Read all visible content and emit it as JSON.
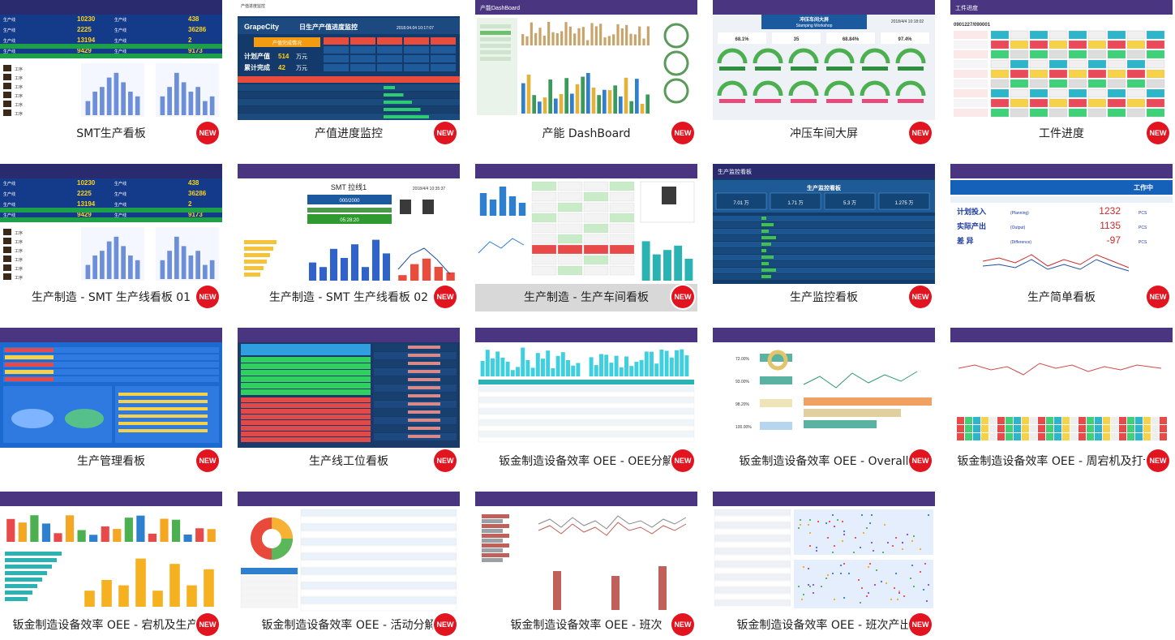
{
  "badge_label": "NEW",
  "cards": [
    {
      "caption": "SMT生产看板",
      "theme": "blue-bars",
      "thumb": {
        "nums": [
          "10230",
          "438",
          "2225",
          "36286",
          "13194",
          "2",
          "9429",
          "9173"
        ]
      }
    },
    {
      "caption": "产值进度监控",
      "theme": "navy-table",
      "thumb": {
        "logo": "GrapeCity",
        "title": "日生产产值进度监控",
        "date": "2018.04.04 10:17:07",
        "plan_label": "计划产值",
        "plan_value": "514",
        "done_label": "累计完成",
        "done_value": "42",
        "unit": "万元",
        "panel_title": "产值完成情况"
      }
    },
    {
      "caption": "产能 DashBoard",
      "theme": "light-bars",
      "thumb": {}
    },
    {
      "caption": "冲压车间大屏",
      "theme": "gauges",
      "thumb": {
        "title": "冲压车间大屏",
        "subtitle": "Stamping Workshop",
        "date": "2018/4/4 10:18:02",
        "vals": [
          "68.1%",
          "35",
          "68.84%",
          "97.4%"
        ]
      }
    },
    {
      "caption": "工件进度",
      "theme": "grid-cells",
      "thumb": {
        "code": "0901227/090001"
      }
    },
    {
      "caption": "生产制造 - SMT 生产线看板 01",
      "theme": "blue-bars",
      "thumb": {
        "nums": [
          "10230",
          "438",
          "2225",
          "36286",
          "13194",
          "2",
          "9429",
          "9173"
        ]
      }
    },
    {
      "caption": "生产制造 - SMT 生产线看板 02",
      "theme": "smt-line",
      "thumb": {
        "title": "SMT 拉线1",
        "date": "2018/4/4 10:35:37",
        "count": "000/2000",
        "timer": "05:28:20"
      }
    },
    {
      "caption": "生产制造 - 生产车间看板",
      "theme": "workshop",
      "highlight": true,
      "thumb": {}
    },
    {
      "caption": "生产监控看板",
      "theme": "monitor",
      "thumb": {
        "title": "生产监控看板",
        "kpis": [
          "7.01 万",
          "1.71 万",
          "5.3 万",
          "1.275 万"
        ]
      }
    },
    {
      "caption": "生产简单看板",
      "theme": "simple",
      "thumb": {
        "status": "工作中",
        "rows": [
          {
            "label": "计划投入",
            "en": "(Planning)",
            "value": "1232"
          },
          {
            "label": "实际产出",
            "en": "(Output)",
            "value": "1135"
          },
          {
            "label": "差  异",
            "en": "(Difference)",
            "value": "-97"
          }
        ],
        "unit": "PCS"
      }
    },
    {
      "caption": "生产管理看板",
      "theme": "mgmt",
      "thumb": {}
    },
    {
      "caption": "生产线工位看板",
      "theme": "station",
      "thumb": {}
    },
    {
      "caption": "钣金制造设备效率 OEE - OEE分解",
      "theme": "oee1",
      "thumb": {}
    },
    {
      "caption": "钣金制造设备效率 OEE - Overall",
      "theme": "oee2",
      "thumb": {
        "pcts": [
          "72.00%",
          "93.00%",
          "98.20%",
          "100.00%"
        ]
      }
    },
    {
      "caption": "钣金制造设备效率 OEE - 周宕机及打卡时",
      "theme": "oee3",
      "thumb": {}
    },
    {
      "caption": "钣金制造设备效率 OEE - 宕机及生产率",
      "theme": "oee4",
      "thumb": {}
    },
    {
      "caption": "钣金制造设备效率 OEE - 活动分解",
      "theme": "oee5",
      "thumb": {}
    },
    {
      "caption": "钣金制造设备效率 OEE - 班次",
      "theme": "oee6",
      "thumb": {}
    },
    {
      "caption": "钣金制造设备效率 OEE - 班次产出",
      "theme": "oee7",
      "thumb": {}
    }
  ]
}
